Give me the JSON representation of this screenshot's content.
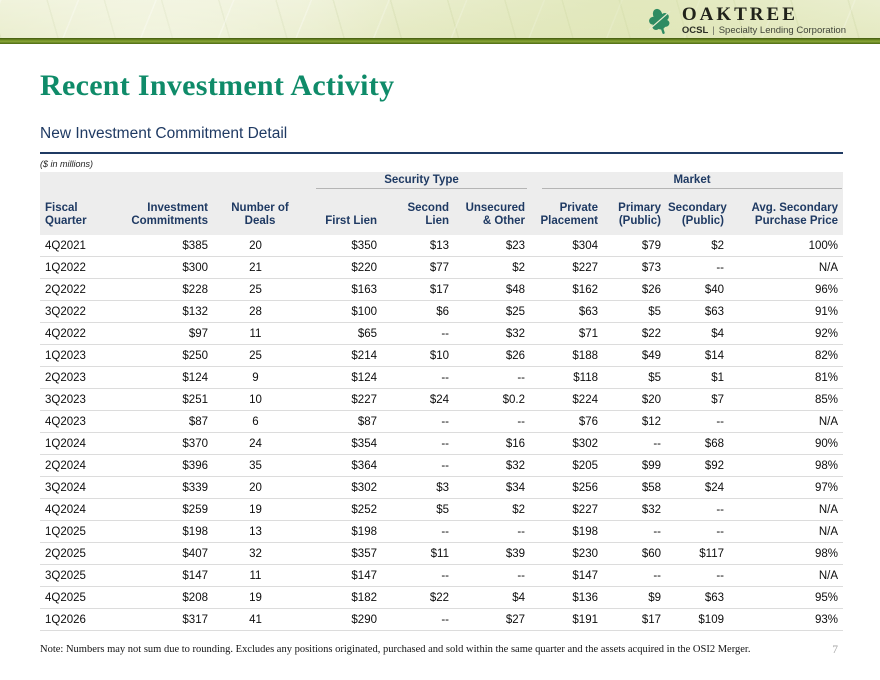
{
  "banner": {
    "logo_brand": "OAKTREE",
    "logo_ticker": "OCSL",
    "logo_divider": "|",
    "logo_tagline": "Specialty Lending Corporation"
  },
  "page": {
    "title": "Recent Investment Activity",
    "subtitle": "New Investment Commitment Detail",
    "units_label": "($ in millions)",
    "footnote": "Note: Numbers may not sum due to rounding. Excludes any positions originated, purchased and sold within the same quarter and the assets acquired in the OSI2 Merger.",
    "page_number": "7"
  },
  "colors": {
    "brand_green": "#0f8b69",
    "navy": "#1f3a63",
    "banner_olive": "#6b8a21",
    "banner_background": "#eaedcd",
    "header_gray": "#ededed",
    "leaf_green": "#2e8b62"
  },
  "table": {
    "groups": [
      {
        "label": "Security Type",
        "colspan": 3
      },
      {
        "label": "Market",
        "colspan": 4
      }
    ],
    "columns": [
      "Fiscal Quarter",
      "Investment\nCommitments",
      "Number of Deals",
      "First Lien",
      "Second Lien",
      "Unsecured\n& Other",
      "Private\nPlacement",
      "Primary\n(Public)",
      "Secondary\n(Public)",
      "Avg. Secondary\nPurchase Price"
    ],
    "rows": [
      [
        "4Q2021",
        "$385",
        "20",
        "$350",
        "$13",
        "$23",
        "$304",
        "$79",
        "$2",
        "100%"
      ],
      [
        "1Q2022",
        "$300",
        "21",
        "$220",
        "$77",
        "$2",
        "$227",
        "$73",
        "--",
        "N/A"
      ],
      [
        "2Q2022",
        "$228",
        "25",
        "$163",
        "$17",
        "$48",
        "$162",
        "$26",
        "$40",
        "96%"
      ],
      [
        "3Q2022",
        "$132",
        "28",
        "$100",
        "$6",
        "$25",
        "$63",
        "$5",
        "$63",
        "91%"
      ],
      [
        "4Q2022",
        "$97",
        "11",
        "$65",
        "--",
        "$32",
        "$71",
        "$22",
        "$4",
        "92%"
      ],
      [
        "1Q2023",
        "$250",
        "25",
        "$214",
        "$10",
        "$26",
        "$188",
        "$49",
        "$14",
        "82%"
      ],
      [
        "2Q2023",
        "$124",
        "9",
        "$124",
        "--",
        "--",
        "$118",
        "$5",
        "$1",
        "81%"
      ],
      [
        "3Q2023",
        "$251",
        "10",
        "$227",
        "$24",
        "$0.2",
        "$224",
        "$20",
        "$7",
        "85%"
      ],
      [
        "4Q2023",
        "$87",
        "6",
        "$87",
        "--",
        "--",
        "$76",
        "$12",
        "--",
        "N/A"
      ],
      [
        "1Q2024",
        "$370",
        "24",
        "$354",
        "--",
        "$16",
        "$302",
        "--",
        "$68",
        "90%"
      ],
      [
        "2Q2024",
        "$396",
        "35",
        "$364",
        "--",
        "$32",
        "$205",
        "$99",
        "$92",
        "98%"
      ],
      [
        "3Q2024",
        "$339",
        "20",
        "$302",
        "$3",
        "$34",
        "$256",
        "$58",
        "$24",
        "97%"
      ],
      [
        "4Q2024",
        "$259",
        "19",
        "$252",
        "$5",
        "$2",
        "$227",
        "$32",
        "--",
        "N/A"
      ],
      [
        "1Q2025",
        "$198",
        "13",
        "$198",
        "--",
        "--",
        "$198",
        "--",
        "--",
        "N/A"
      ],
      [
        "2Q2025",
        "$407",
        "32",
        "$357",
        "$11",
        "$39",
        "$230",
        "$60",
        "$117",
        "98%"
      ],
      [
        "3Q2025",
        "$147",
        "11",
        "$147",
        "--",
        "--",
        "$147",
        "--",
        "--",
        "N/A"
      ],
      [
        "4Q2025",
        "$208",
        "19",
        "$182",
        "$22",
        "$4",
        "$136",
        "$9",
        "$63",
        "95%"
      ],
      [
        "1Q2026",
        "$317",
        "41",
        "$290",
        "--",
        "$27",
        "$191",
        "$17",
        "$109",
        "93%"
      ]
    ]
  }
}
